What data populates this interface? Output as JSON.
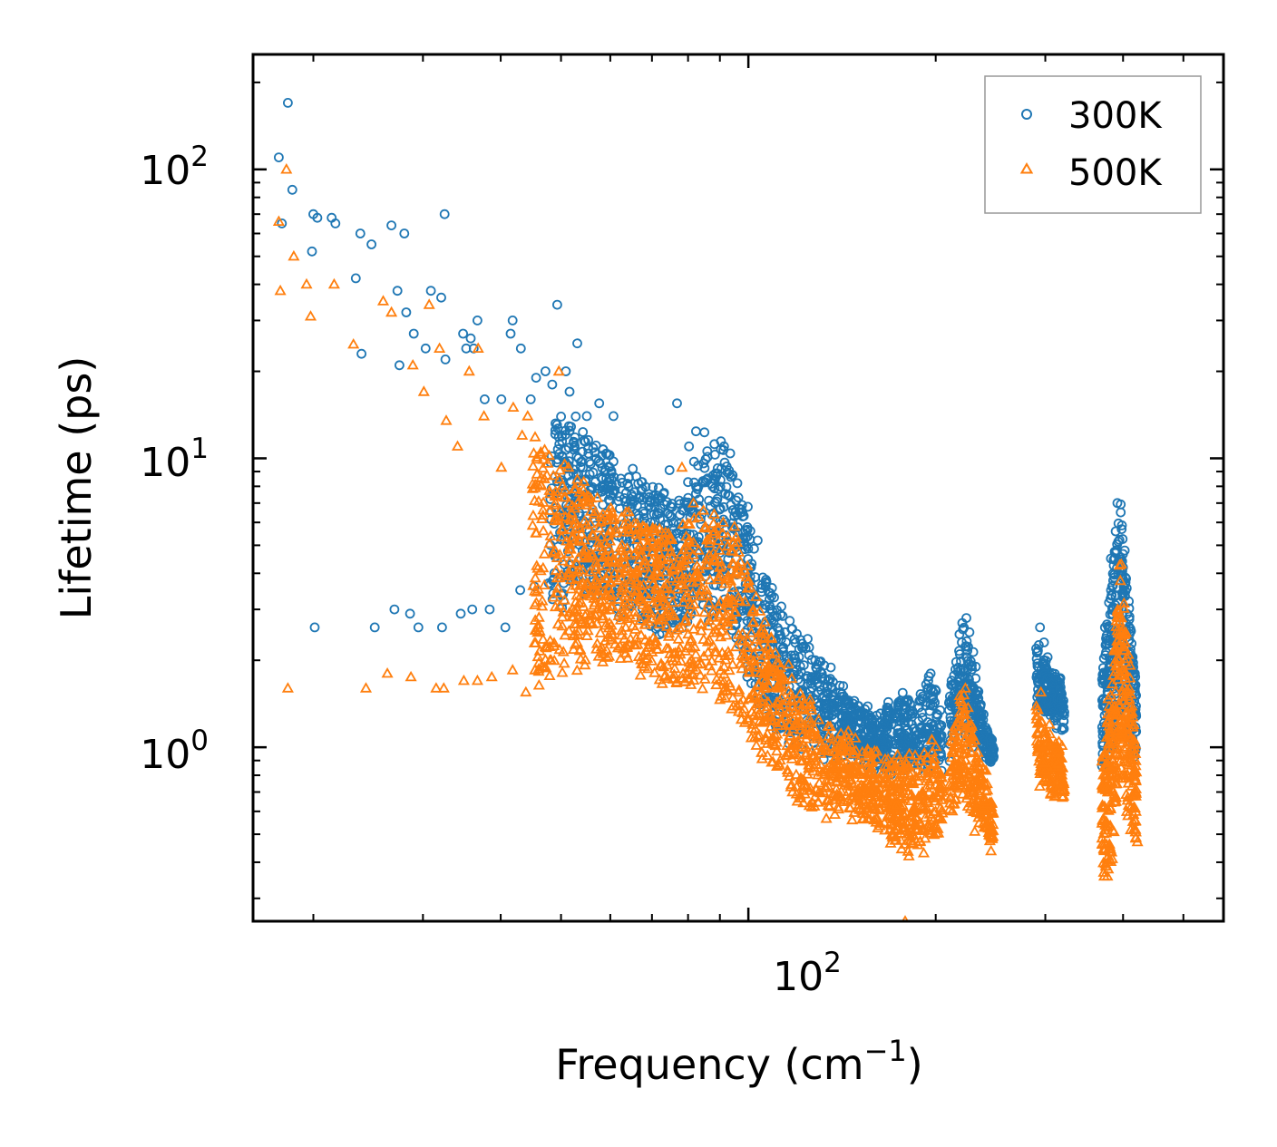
{
  "chart_data": {
    "type": "scatter",
    "title": "",
    "xlabel": "Frequency (cm",
    "xlabel_sup": "−1",
    "xlabel_close": ")",
    "ylabel": "Lifetime (ps)",
    "xscale": "log",
    "yscale": "log",
    "xlim": [
      16,
      580
    ],
    "ylim": [
      0.25,
      250
    ],
    "x_tick_labels": [
      {
        "base": "10",
        "exp": "2"
      }
    ],
    "y_tick_labels": [
      {
        "base": "10",
        "exp": "2"
      },
      {
        "base": "10",
        "exp": "1"
      },
      {
        "base": "10",
        "exp": "0"
      }
    ],
    "legend_location": "top-right",
    "colors": {
      "300K": "#1f77b4",
      "500K": "#ff7f0e"
    },
    "series": [
      {
        "name": "300K",
        "marker": "circle",
        "points": [
          [
            17.6,
            110
          ],
          [
            18.2,
            170
          ],
          [
            18.5,
            85
          ],
          [
            17.8,
            65
          ],
          [
            20.0,
            70
          ],
          [
            20.3,
            68
          ],
          [
            21.4,
            68
          ],
          [
            21.7,
            65
          ],
          [
            19.9,
            52
          ],
          [
            23.8,
            60
          ],
          [
            24.8,
            55
          ],
          [
            23.4,
            42
          ],
          [
            23.9,
            23
          ],
          [
            26.7,
            64
          ],
          [
            28.0,
            60
          ],
          [
            27.3,
            38
          ],
          [
            28.2,
            32
          ],
          [
            29.0,
            27
          ],
          [
            27.5,
            21
          ],
          [
            30.9,
            38
          ],
          [
            30.3,
            24
          ],
          [
            32.1,
            36
          ],
          [
            32.5,
            70
          ],
          [
            32.6,
            22
          ],
          [
            35.2,
            24
          ],
          [
            35.8,
            26
          ],
          [
            34.8,
            27
          ],
          [
            36.7,
            30
          ],
          [
            36.2,
            24
          ],
          [
            37.7,
            16
          ],
          [
            40.1,
            16
          ],
          [
            41.5,
            27
          ],
          [
            41.8,
            30
          ],
          [
            43.1,
            24
          ],
          [
            44.7,
            16
          ],
          [
            45.6,
            19
          ],
          [
            47.2,
            20
          ],
          [
            48.4,
            18
          ],
          [
            49.3,
            34
          ],
          [
            50.9,
            20
          ],
          [
            51.6,
            17
          ],
          [
            53.1,
            25
          ],
          [
            55.0,
            14
          ],
          [
            57.6,
            15.5
          ],
          [
            60.7,
            14
          ],
          [
            64.2,
            8.6
          ],
          [
            65.2,
            9.2
          ],
          [
            67.3,
            7.7
          ],
          [
            70.4,
            7.4
          ],
          [
            73.2,
            7.6
          ],
          [
            74.7,
            9.1
          ],
          [
            76.8,
            15.5
          ],
          [
            80.3,
            11
          ],
          [
            82.4,
            12.4
          ],
          [
            85.0,
            12.3
          ],
          [
            88.2,
            11.2
          ],
          [
            91.4,
            11.0
          ],
          [
            93.5,
            10.4
          ],
          [
            96.0,
            8.2
          ],
          [
            99.8,
            6.8
          ],
          [
            103.5,
            5.2
          ],
          [
            106.7,
            3.8
          ],
          [
            110.0,
            3.3
          ],
          [
            114.5,
            2.5
          ],
          [
            119.0,
            2.3
          ],
          [
            123.6,
            2.2
          ],
          [
            128.1,
            2.0
          ],
          [
            134.8,
            1.7
          ],
          [
            140.5,
            1.55
          ],
          [
            145.7,
            1.4
          ],
          [
            150.2,
            1.3
          ],
          [
            157.4,
            1.15
          ],
          [
            163.6,
            1.05
          ],
          [
            169.9,
            1.2
          ],
          [
            175.7,
            1.45
          ],
          [
            182.5,
            1.3
          ],
          [
            190.6,
            1.5
          ],
          [
            196.3,
            1.8
          ],
          [
            203.4,
            1.1
          ],
          [
            212.1,
            1.7
          ],
          [
            218.7,
            2.1
          ],
          [
            224.0,
            2.8
          ],
          [
            226.6,
            2.5
          ],
          [
            232.0,
            1.9
          ],
          [
            238.8,
            1.3
          ],
          [
            245.6,
            1.05
          ],
          [
            294.2,
            2.6
          ],
          [
            302.6,
            2.05
          ],
          [
            311.5,
            1.75
          ],
          [
            320.8,
            1.45
          ],
          [
            374.1,
            2.6
          ],
          [
            382.5,
            4.5
          ],
          [
            391.7,
            7.0
          ],
          [
            396.6,
            6.5
          ],
          [
            402.4,
            4.8
          ],
          [
            408.6,
            3.2
          ],
          [
            412.4,
            2.05
          ],
          [
            417.7,
            1.6
          ],
          [
            20.1,
            2.6
          ],
          [
            25.1,
            2.6
          ],
          [
            27.0,
            3.0
          ],
          [
            28.6,
            2.9
          ],
          [
            29.5,
            2.6
          ],
          [
            32.2,
            2.6
          ],
          [
            34.5,
            2.9
          ],
          [
            36.0,
            3.0
          ],
          [
            38.4,
            3.0
          ],
          [
            40.7,
            2.6
          ],
          [
            43.0,
            3.5
          ],
          [
            45.3,
            3.6
          ],
          [
            47.8,
            3.7
          ],
          [
            50.5,
            3.2
          ],
          [
            52.7,
            3.8
          ],
          [
            55.6,
            4.5
          ]
        ]
      },
      {
        "name": "500K",
        "marker": "triangle",
        "points": [
          [
            18.1,
            100
          ],
          [
            17.6,
            66
          ],
          [
            18.6,
            50
          ],
          [
            19.5,
            40
          ],
          [
            17.7,
            38
          ],
          [
            19.8,
            31
          ],
          [
            21.6,
            40
          ],
          [
            23.2,
            24.8
          ],
          [
            25.9,
            35
          ],
          [
            26.7,
            32
          ],
          [
            28.9,
            21
          ],
          [
            30.7,
            34
          ],
          [
            31.9,
            24
          ],
          [
            30.1,
            17
          ],
          [
            32.7,
            13.5
          ],
          [
            34.1,
            11
          ],
          [
            35.6,
            20
          ],
          [
            36.8,
            24
          ],
          [
            37.6,
            14
          ],
          [
            40.1,
            9.3
          ],
          [
            41.9,
            15
          ],
          [
            43.3,
            12
          ],
          [
            44.2,
            14
          ],
          [
            46.4,
            10.5
          ],
          [
            47.6,
            9.6
          ],
          [
            48.6,
            8.7
          ],
          [
            49.6,
            20
          ],
          [
            51.4,
            9.3
          ],
          [
            52.7,
            6.1
          ],
          [
            54.4,
            8.3
          ],
          [
            57.9,
            6.0
          ],
          [
            60.4,
            6.5
          ],
          [
            63.2,
            5.9
          ],
          [
            66.5,
            5.7
          ],
          [
            68.0,
            5.4
          ],
          [
            71.5,
            5.1
          ],
          [
            74.4,
            5.5
          ],
          [
            78.2,
            9.3
          ],
          [
            81.6,
            7.0
          ],
          [
            84.7,
            6.6
          ],
          [
            88.1,
            6.4
          ],
          [
            91.1,
            6.0
          ],
          [
            95.0,
            5.8
          ],
          [
            98.6,
            4.1
          ],
          [
            101.8,
            3.0
          ],
          [
            104.8,
            2.4
          ],
          [
            108.2,
            1.9
          ],
          [
            111.9,
            1.6
          ],
          [
            115.6,
            1.45
          ],
          [
            119.5,
            1.3
          ],
          [
            124.5,
            1.15
          ],
          [
            130.7,
            0.95
          ],
          [
            137.8,
            0.85
          ],
          [
            143.5,
            1.1
          ],
          [
            148.1,
            0.95
          ],
          [
            155.9,
            0.82
          ],
          [
            162.4,
            0.65
          ],
          [
            168.0,
            0.75
          ],
          [
            173.0,
            0.63
          ],
          [
            178.6,
            0.25
          ],
          [
            181.1,
            0.42
          ],
          [
            186.9,
            0.52
          ],
          [
            193.4,
            0.92
          ],
          [
            200.5,
            0.68
          ],
          [
            212.3,
            0.92
          ],
          [
            217.9,
            1.25
          ],
          [
            223.2,
            1.6
          ],
          [
            229.0,
            1.1
          ],
          [
            234.6,
            0.85
          ],
          [
            240.6,
            0.65
          ],
          [
            246.3,
            0.52
          ],
          [
            295.2,
            1.55
          ],
          [
            304.7,
            1.2
          ],
          [
            315.4,
            0.97
          ],
          [
            370.6,
            0.63
          ],
          [
            378.8,
            0.42
          ],
          [
            386.0,
            1.3
          ],
          [
            392.2,
            3.0
          ],
          [
            397.4,
            4.3
          ],
          [
            404.1,
            2.5
          ],
          [
            410.5,
            1.3
          ],
          [
            416.9,
            0.62
          ],
          [
            421.8,
            0.47
          ],
          [
            18.2,
            1.6
          ],
          [
            24.3,
            1.6
          ],
          [
            26.3,
            1.8
          ],
          [
            28.7,
            1.75
          ],
          [
            31.5,
            1.6
          ],
          [
            32.4,
            1.6
          ],
          [
            34.9,
            1.7
          ],
          [
            36.7,
            1.7
          ],
          [
            38.7,
            1.75
          ],
          [
            41.8,
            1.85
          ],
          [
            43.9,
            1.55
          ],
          [
            45.4,
            1.85
          ],
          [
            48.0,
            2.0
          ],
          [
            50.6,
            1.95
          ],
          [
            53.1,
            2.3
          ],
          [
            55.7,
            2.7
          ]
        ]
      }
    ]
  }
}
